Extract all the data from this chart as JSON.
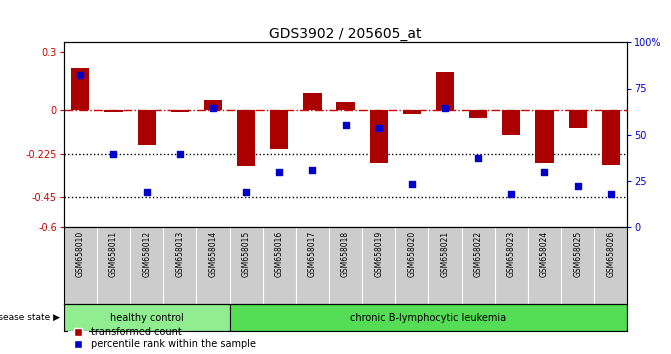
{
  "title": "GDS3902 / 205605_at",
  "samples": [
    "GSM658010",
    "GSM658011",
    "GSM658012",
    "GSM658013",
    "GSM658014",
    "GSM658015",
    "GSM658016",
    "GSM658017",
    "GSM658018",
    "GSM658019",
    "GSM658020",
    "GSM658021",
    "GSM658022",
    "GSM658023",
    "GSM658024",
    "GSM658025",
    "GSM658026"
  ],
  "bar_values": [
    0.22,
    -0.01,
    -0.18,
    -0.01,
    0.055,
    -0.29,
    -0.2,
    0.09,
    0.045,
    -0.27,
    -0.02,
    0.2,
    -0.04,
    -0.13,
    -0.27,
    -0.09,
    -0.28
  ],
  "dot_values": [
    0.18,
    -0.225,
    -0.42,
    -0.225,
    0.01,
    -0.42,
    -0.32,
    -0.31,
    -0.075,
    -0.09,
    -0.38,
    0.01,
    -0.245,
    -0.43,
    -0.32,
    -0.39,
    -0.43
  ],
  "ylim_left": [
    -0.6,
    0.35
  ],
  "yticks_left": [
    -0.6,
    -0.45,
    -0.225,
    0.0,
    0.3
  ],
  "ytick_labels_left": [
    "-0.6",
    "-0.45",
    "-0.225",
    "0",
    "0.3"
  ],
  "ylim_right": [
    0,
    100
  ],
  "yticks_right": [
    0,
    25,
    50,
    75,
    100
  ],
  "ytick_labels_right": [
    "0",
    "25",
    "50",
    "75",
    "100%"
  ],
  "bar_color": "#aa0000",
  "dot_color": "#0000cc",
  "hline_y": 0.0,
  "hline_color": "#cc0000",
  "dotted_lines": [
    -0.225,
    -0.45
  ],
  "dotted_color": "#000000",
  "healthy_count": 5,
  "disease_label": "disease state",
  "healthy_label": "healthy control",
  "leukemia_label": "chronic B-lymphocytic leukemia",
  "healthy_bg": "#90ee90",
  "leukemia_bg": "#55dd55",
  "legend_bar_label": "transformed count",
  "legend_dot_label": "percentile rank within the sample",
  "sample_bg": "#cccccc",
  "bar_width": 0.55,
  "title_fontsize": 10,
  "tick_fontsize": 7,
  "right_ax_color": "#0000cc",
  "left_ax_color": "#cc0000"
}
